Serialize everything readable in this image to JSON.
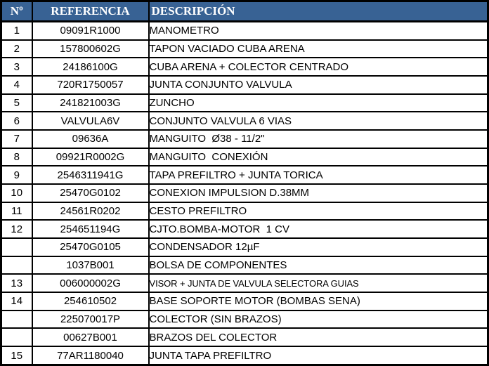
{
  "colors": {
    "header_bg": "#386294",
    "header_text": "#ffffff",
    "border": "#000000",
    "row_bg": "#ffffff",
    "body_text": "#000000"
  },
  "table": {
    "columns": [
      {
        "key": "num",
        "label": "Nº"
      },
      {
        "key": "ref",
        "label": "REFERENCIA"
      },
      {
        "key": "desc",
        "label": "DESCRIPCIÓN"
      }
    ],
    "rows": [
      {
        "num": "1",
        "ref": "09091R1000",
        "desc": "MANOMETRO"
      },
      {
        "num": "2",
        "ref": "157800602G",
        "desc": "TAPON VACIADO CUBA ARENA"
      },
      {
        "num": "3",
        "ref": "24186100G",
        "desc": "CUBA ARENA + COLECTOR CENTRADO"
      },
      {
        "num": "4",
        "ref": "720R1750057",
        "desc": "JUNTA CONJUNTO VALVULA"
      },
      {
        "num": "5",
        "ref": "241821003G",
        "desc": "ZUNCHO"
      },
      {
        "num": "6",
        "ref": "VALVULA6V",
        "desc": "CONJUNTO VALVULA 6 VIAS"
      },
      {
        "num": "7",
        "ref": "09636A",
        "desc": "MANGUITO  Ø38 - 11/2\""
      },
      {
        "num": "8",
        "ref": "09921R0002G",
        "desc": "MANGUITO  CONEXIÓN"
      },
      {
        "num": "9",
        "ref": "2546311941G",
        "desc": "TAPA PREFILTRO + JUNTA TORICA"
      },
      {
        "num": "10",
        "ref": "25470G0102",
        "desc": "CONEXION IMPULSION D.38MM"
      },
      {
        "num": "11",
        "ref": "24561R0202",
        "desc": "CESTO PREFILTRO"
      },
      {
        "num": "12",
        "ref": "254651194G",
        "desc": "CJTO.BOMBA-MOTOR  1 CV"
      },
      {
        "num": "",
        "ref": "25470G0105",
        "desc": "CONDENSADOR 12µF"
      },
      {
        "num": "",
        "ref": "1037B001",
        "desc": "BOLSA DE COMPONENTES"
      },
      {
        "num": "13",
        "ref": "006000002G",
        "desc": "VISOR + JUNTA DE VALVULA SELECTORA GUIAS"
      },
      {
        "num": "14",
        "ref": "254610502",
        "desc": "BASE SOPORTE MOTOR (BOMBAS SENA)"
      },
      {
        "num": "",
        "ref": "225070017P",
        "desc": "COLECTOR (SIN BRAZOS)"
      },
      {
        "num": "",
        "ref": "00627B001",
        "desc": "BRAZOS DEL COLECTOR"
      },
      {
        "num": "15",
        "ref": "77AR1180040",
        "desc": "JUNTA TAPA PREFILTRO"
      }
    ]
  }
}
